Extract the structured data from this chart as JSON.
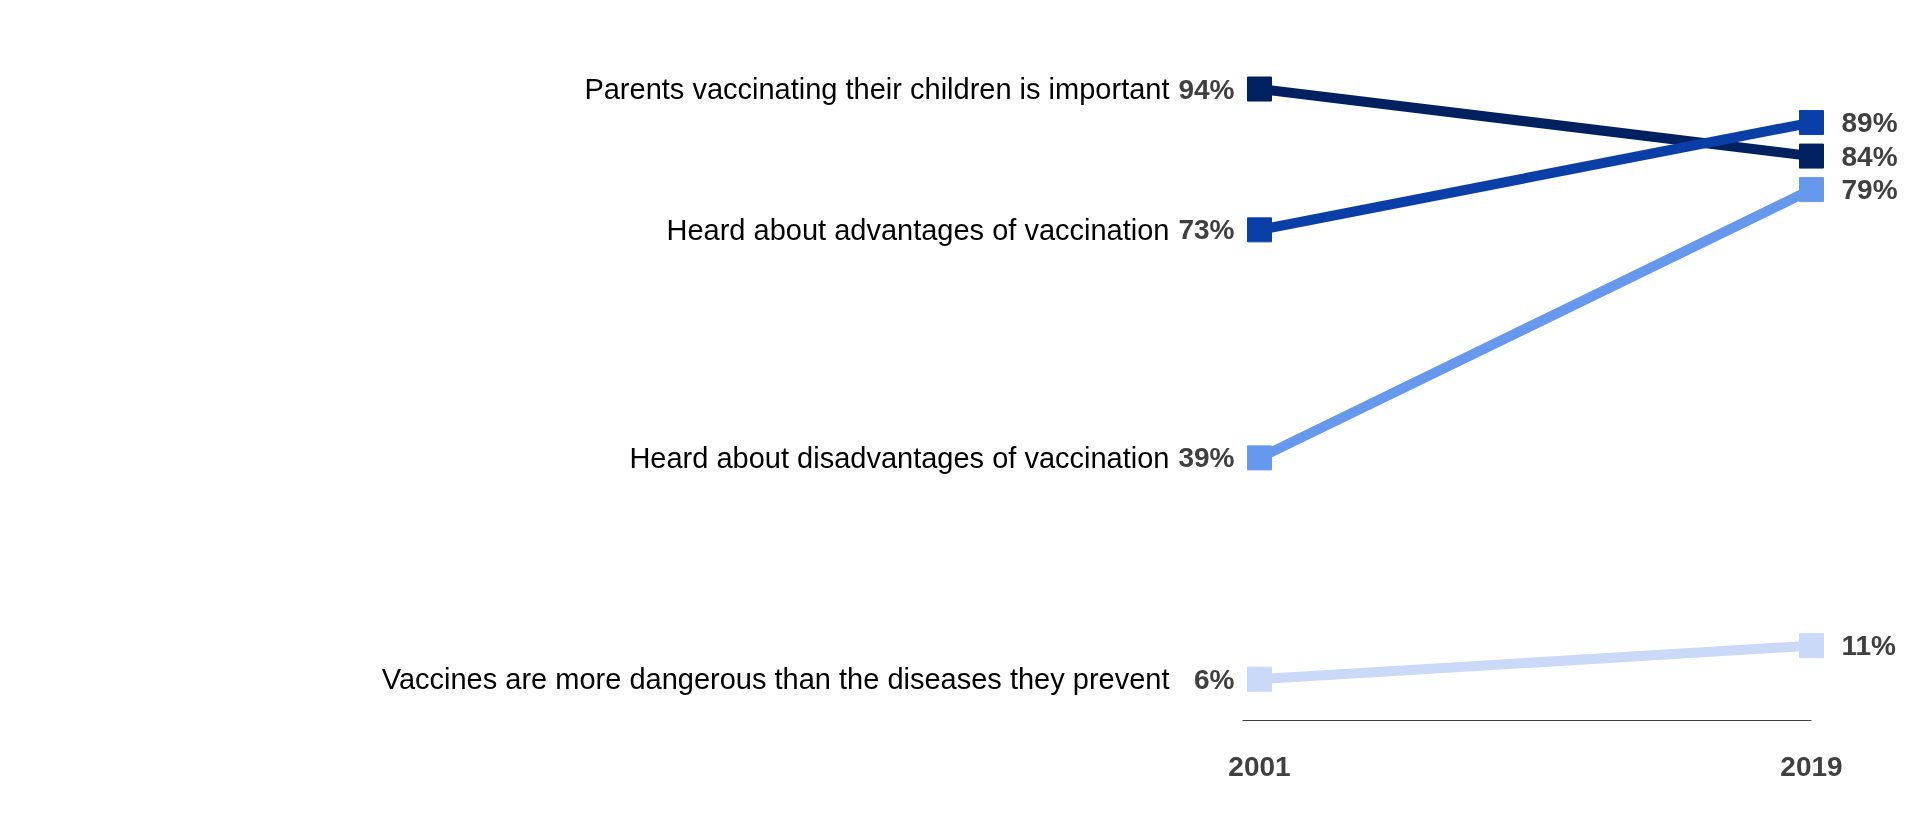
{
  "chart_data": {
    "type": "line",
    "categories": [
      "2001",
      "2019"
    ],
    "marker": "square",
    "grid": false,
    "series": [
      {
        "name": "Parents vaccinating their children is important",
        "color": "#002060",
        "values": [
          94,
          84
        ],
        "value_labels": [
          "94%",
          "84%"
        ]
      },
      {
        "name": "Heard about advantages of vaccination",
        "color": "#0b3fa8",
        "values": [
          73,
          89
        ],
        "value_labels": [
          "73%",
          "89%"
        ]
      },
      {
        "name": "Heard about disadvantages of vaccination",
        "color": "#6699ee",
        "values": [
          39,
          79
        ],
        "value_labels": [
          "39%",
          "79%"
        ]
      },
      {
        "name": "Vaccines are more dangerous than the diseases they prevent",
        "color": "#c9d9f7",
        "values": [
          6,
          11
        ],
        "value_labels": [
          "6%",
          "11%"
        ]
      }
    ]
  }
}
